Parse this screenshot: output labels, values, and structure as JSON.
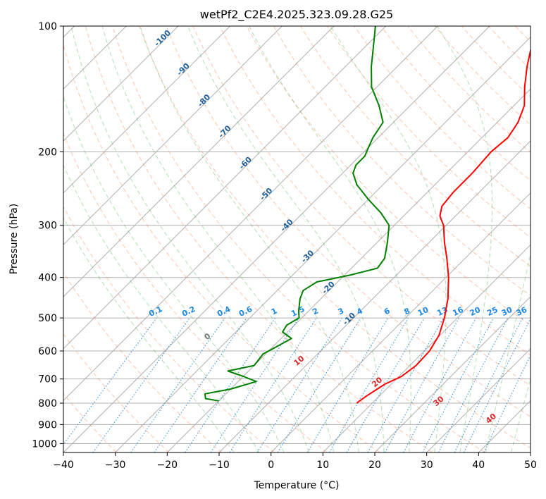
{
  "chart_data": {
    "type": "skew-t",
    "title": "wetPf2_C2E4.2025.323.09.28.G25",
    "xlabel": "Temperature (°C)",
    "ylabel": "Pressure (hPa)",
    "xlim": [
      -40,
      50
    ],
    "ylim": [
      1050,
      100
    ],
    "y_scale": "log",
    "x_ticks": [
      "−40",
      "−30",
      "−20",
      "−10",
      "0",
      "10",
      "20",
      "30",
      "40",
      "50"
    ],
    "y_ticks": [
      "100",
      "200",
      "300",
      "400",
      "500",
      "600",
      "700",
      "800",
      "900",
      "1000"
    ],
    "colors": {
      "temperature": "#ff0000",
      "dewpoint": "#008000",
      "isotherm": "#b0b0b0",
      "dry_adiabat": "#ff7f50",
      "moist_adiabat": "#2ca02c",
      "mixing_ratio": "#1e88e5",
      "isotherm_label": "#1f5f9a",
      "moist_label": "#d62728"
    },
    "isotherm_labels": [
      "-100",
      "-90",
      "-80",
      "-70",
      "-60",
      "-50",
      "-40",
      "-30",
      "-20",
      "-10"
    ],
    "mixing_ratio_labels": [
      "0.1",
      "0.2",
      "0.4",
      "0.6",
      "1",
      "1.5",
      "2",
      "3",
      "4",
      "6",
      "8",
      "10",
      "13",
      "16",
      "20",
      "25",
      "30",
      "36"
    ],
    "moist_adiabat_labels": [
      "0",
      "10",
      "20",
      "30",
      "40"
    ],
    "series": [
      {
        "role": "temperature",
        "points": [
          {
            "p": 800,
            "t": 7
          },
          {
            "p": 770,
            "t": 7.5
          },
          {
            "p": 720,
            "t": 8.8
          },
          {
            "p": 690,
            "t": 10.5
          },
          {
            "p": 650,
            "t": 11.2
          },
          {
            "p": 600,
            "t": 11
          },
          {
            "p": 550,
            "t": 9.8
          },
          {
            "p": 500,
            "t": 7.5
          },
          {
            "p": 450,
            "t": 4.5
          },
          {
            "p": 400,
            "t": 0.5
          },
          {
            "p": 360,
            "t": -3.5
          },
          {
            "p": 330,
            "t": -7
          },
          {
            "p": 300,
            "t": -10.5
          },
          {
            "p": 285,
            "t": -13
          },
          {
            "p": 270,
            "t": -14.5
          },
          {
            "p": 250,
            "t": -15
          },
          {
            "p": 225,
            "t": -15
          },
          {
            "p": 200,
            "t": -15.5
          },
          {
            "p": 185,
            "t": -15
          },
          {
            "p": 170,
            "t": -16
          },
          {
            "p": 155,
            "t": -18
          },
          {
            "p": 140,
            "t": -21.5
          },
          {
            "p": 125,
            "t": -25
          },
          {
            "p": 110,
            "t": -28.5
          },
          {
            "p": 100,
            "t": -31
          }
        ]
      },
      {
        "role": "dewpoint",
        "points": [
          {
            "p": 790,
            "t": -20
          },
          {
            "p": 780,
            "t": -23
          },
          {
            "p": 760,
            "t": -24
          },
          {
            "p": 740,
            "t": -20
          },
          {
            "p": 710,
            "t": -16.5
          },
          {
            "p": 690,
            "t": -20
          },
          {
            "p": 670,
            "t": -24
          },
          {
            "p": 650,
            "t": -20
          },
          {
            "p": 610,
            "t": -20.5
          },
          {
            "p": 580,
            "t": -19
          },
          {
            "p": 560,
            "t": -18
          },
          {
            "p": 540,
            "t": -21
          },
          {
            "p": 520,
            "t": -21.5
          },
          {
            "p": 500,
            "t": -20.5
          },
          {
            "p": 480,
            "t": -22
          },
          {
            "p": 450,
            "t": -24
          },
          {
            "p": 430,
            "t": -25
          },
          {
            "p": 410,
            "t": -24
          },
          {
            "p": 395,
            "t": -19
          },
          {
            "p": 380,
            "t": -15
          },
          {
            "p": 360,
            "t": -15.5
          },
          {
            "p": 330,
            "t": -18
          },
          {
            "p": 300,
            "t": -21
          },
          {
            "p": 280,
            "t": -25
          },
          {
            "p": 260,
            "t": -30
          },
          {
            "p": 240,
            "t": -35
          },
          {
            "p": 225,
            "t": -38
          },
          {
            "p": 215,
            "t": -39
          },
          {
            "p": 205,
            "t": -39
          },
          {
            "p": 195,
            "t": -40
          },
          {
            "p": 185,
            "t": -41
          },
          {
            "p": 170,
            "t": -42
          },
          {
            "p": 155,
            "t": -46
          },
          {
            "p": 140,
            "t": -51
          },
          {
            "p": 125,
            "t": -55
          },
          {
            "p": 110,
            "t": -59
          },
          {
            "p": 100,
            "t": -62
          }
        ]
      }
    ]
  }
}
